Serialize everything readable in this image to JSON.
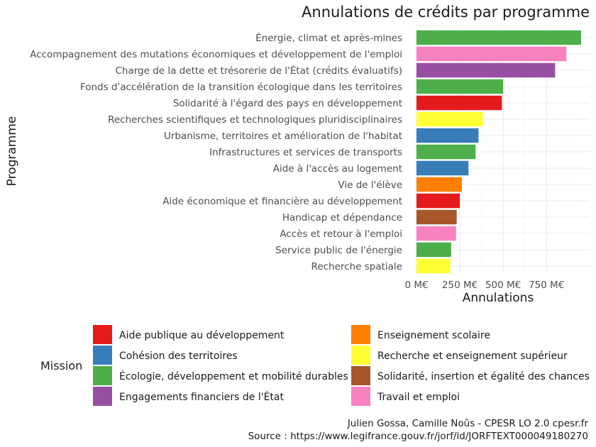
{
  "chart_data": {
    "type": "bar",
    "orientation": "horizontal",
    "title": "Annulations de crédits par programme",
    "xlabel": "Annulations",
    "ylabel": "Programme",
    "xlim": [
      0,
      950
    ],
    "x_ticks": [
      0,
      250,
      500,
      750
    ],
    "x_tick_labels": [
      "0 M€",
      "250 M€",
      "500 M€",
      "750 M€"
    ],
    "grid": true,
    "legend_position": "bottom",
    "legend_title": "Mission",
    "legend_entries": [
      {
        "name": "Aide publique au développement",
        "color": "#e41a1c"
      },
      {
        "name": "Cohésion des territoires",
        "color": "#377eb8"
      },
      {
        "name": "Écologie, développement et mobilité durables",
        "color": "#4daf4a"
      },
      {
        "name": "Engagements financiers de l'État",
        "color": "#984ea3"
      },
      {
        "name": "Enseignement scolaire",
        "color": "#ff7f00"
      },
      {
        "name": "Recherche et enseignement supérieur",
        "color": "#ffff33"
      },
      {
        "name": "Solidarité, insertion et égalité des chances",
        "color": "#a65628"
      },
      {
        "name": "Travail et emploi",
        "color": "#f781bf"
      }
    ],
    "bars": [
      {
        "category": "Énergie, climat et après-mines",
        "value": 950,
        "mission": "Écologie, développement et mobilité durables"
      },
      {
        "category": "Accompagnement des mutations économiques et développement de l'emploi",
        "value": 865,
        "mission": "Travail et emploi"
      },
      {
        "category": "Charge de la dette et trésorerie de l'État (crédits évaluatifs)",
        "value": 800,
        "mission": "Engagements financiers de l'État"
      },
      {
        "category": "Fonds d'accélération de la transition écologique dans les territoires",
        "value": 500,
        "mission": "Écologie, développement et mobilité durables"
      },
      {
        "category": "Solidarité à l'égard des pays en développement",
        "value": 493,
        "mission": "Aide publique au développement"
      },
      {
        "category": "Recherches scientifiques et technologiques pluridisciplinaires",
        "value": 383,
        "mission": "Recherche et enseignement supérieur"
      },
      {
        "category": "Urbanisme, territoires et amélioration de l'habitat",
        "value": 358,
        "mission": "Cohésion des territoires"
      },
      {
        "category": "Infrastructures et services de transports",
        "value": 341,
        "mission": "Écologie, développement et mobilité durables"
      },
      {
        "category": "Aide à l'accès au logement",
        "value": 300,
        "mission": "Cohésion des territoires"
      },
      {
        "category": "Vie de l'élève",
        "value": 262,
        "mission": "Enseignement scolaire"
      },
      {
        "category": "Aide économique et financière au développement",
        "value": 250,
        "mission": "Aide publique au développement"
      },
      {
        "category": "Handicap et dépendance",
        "value": 232,
        "mission": "Solidarité, insertion et égalité des chances"
      },
      {
        "category": "Accès et retour à l'emploi",
        "value": 228,
        "mission": "Travail et emploi"
      },
      {
        "category": "Service public de l'énergie",
        "value": 200,
        "mission": "Écologie, développement et mobilité durables"
      },
      {
        "category": "Recherche spatiale",
        "value": 195,
        "mission": "Recherche et enseignement supérieur"
      }
    ],
    "caption_lines": [
      "Julien Gossa, Camille Noûs - CPESR LO 2.0 cpesr.fr",
      "Source : https://www.legifrance.gouv.fr/jorf/id/JORFTEXT000049180270"
    ]
  }
}
